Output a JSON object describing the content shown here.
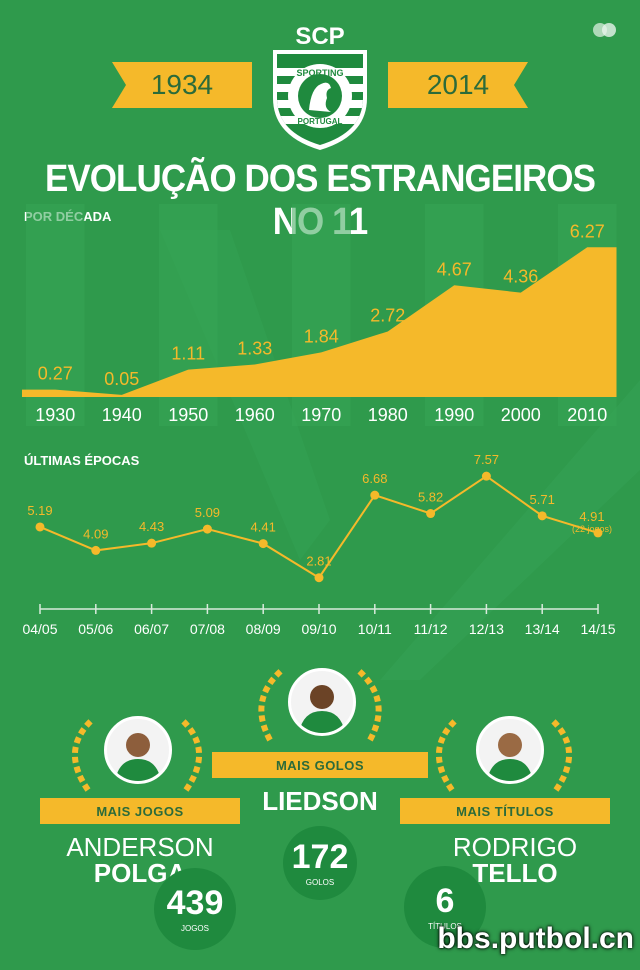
{
  "header": {
    "year_left": "1934",
    "year_right": "2014",
    "logo_top": "SCP",
    "logo_ring_top": "SPORTING",
    "logo_ring_bottom": "PORTUGAL",
    "title": "EVOLUÇÃO DOS ESTRANGEIROS NO 11"
  },
  "chart_data": [
    {
      "type": "area",
      "subtitle": "POR DÉCADA",
      "categories": [
        "1930",
        "1940",
        "1950",
        "1960",
        "1970",
        "1980",
        "1990",
        "2000",
        "2010"
      ],
      "values": [
        0.27,
        0.05,
        1.11,
        1.33,
        1.84,
        2.72,
        4.67,
        4.36,
        6.27
      ],
      "data_labels": [
        "0.27",
        "0.05",
        "1.11",
        "1.33",
        "1.84",
        "2.72",
        "4.67",
        "4.36",
        "6.27"
      ],
      "ylim": [
        0,
        7
      ]
    },
    {
      "type": "line",
      "subtitle": "ÚLTIMAS ÉPOCAS",
      "categories": [
        "04/05",
        "05/06",
        "06/07",
        "07/08",
        "08/09",
        "09/10",
        "10/11",
        "11/12",
        "12/13",
        "13/14",
        "14/15"
      ],
      "values": [
        5.19,
        4.09,
        4.43,
        5.09,
        4.41,
        2.81,
        6.68,
        5.82,
        7.57,
        5.71,
        4.91
      ],
      "data_labels": [
        "5.19",
        "4.09",
        "4.43",
        "5.09",
        "4.41",
        "2.81",
        "6.68",
        "5.82",
        "7.57",
        "5.71",
        "4.91"
      ],
      "annotation": "(22 jogos)",
      "ylim": [
        2,
        8
      ]
    }
  ],
  "players": [
    {
      "label": "MAIS JOGOS",
      "first": "ANDERSON",
      "last": "POLGA",
      "stat": "439",
      "unit": "JOGOS"
    },
    {
      "label": "MAIS GOLOS",
      "first": "",
      "last": "LIEDSON",
      "stat": "172",
      "unit": "GOLOS"
    },
    {
      "label": "MAIS TÍTULOS",
      "first": "RODRIGO",
      "last": "TELLO",
      "stat": "6",
      "unit": "TÍTULOS"
    }
  ],
  "watermark": "bbs.putbol.cn",
  "colors": {
    "background": "#2f9a4c",
    "accent": "#f5b92a",
    "dark_green": "#1f8a3e"
  }
}
